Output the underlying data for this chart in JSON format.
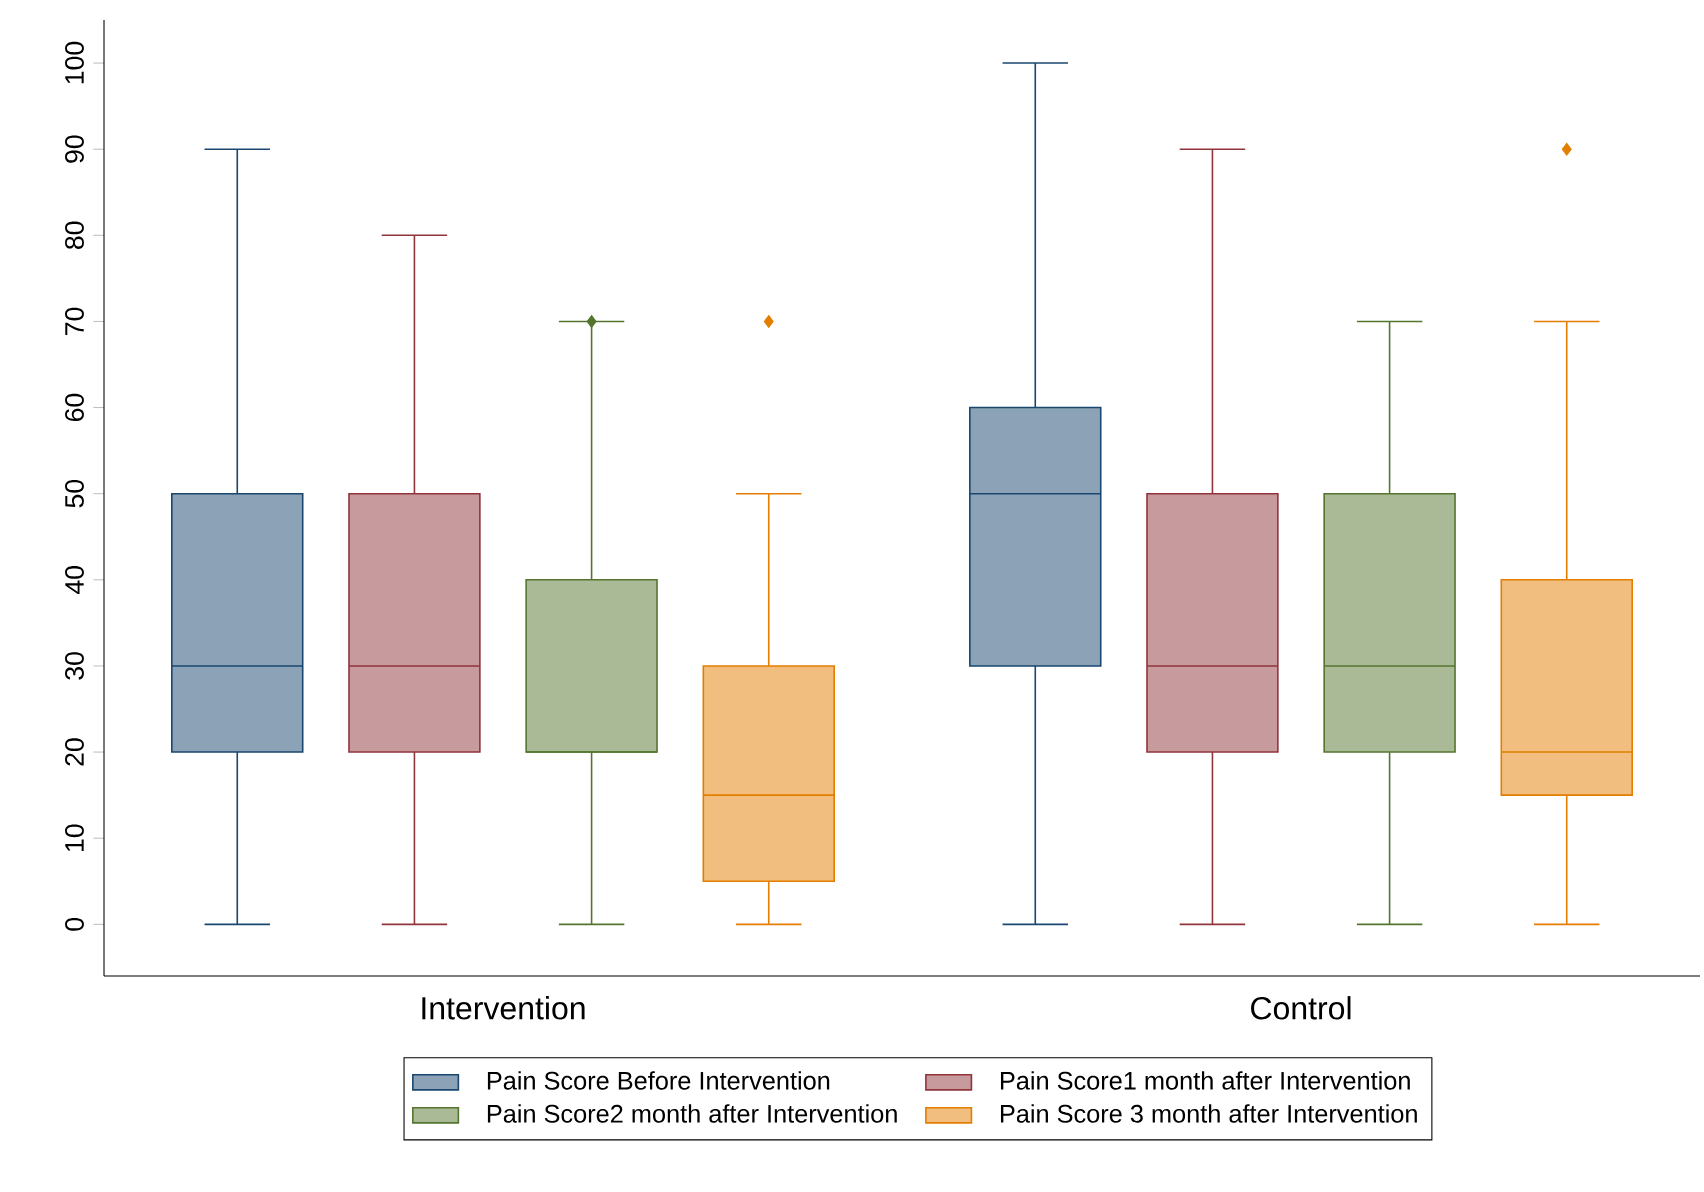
{
  "chart_data": {
    "type": "box",
    "categories": [
      "Intervention",
      "Control"
    ],
    "series": [
      {
        "name": "Pain Score Before Intervention",
        "color": "#1a476f",
        "boxes": [
          {
            "low": 0,
            "q1": 20,
            "median": 30,
            "q3": 50,
            "high": 90
          },
          {
            "low": 0,
            "q1": 30,
            "median": 50,
            "q3": 60,
            "high": 100
          }
        ]
      },
      {
        "name": "Pain Score1 month after Intervention",
        "color": "#90353b",
        "boxes": [
          {
            "low": 0,
            "q1": 20,
            "median": 30,
            "q3": 50,
            "high": 80
          },
          {
            "low": 0,
            "q1": 20,
            "median": 30,
            "q3": 50,
            "high": 90
          }
        ]
      },
      {
        "name": "Pain Score2 month after Intervention",
        "color": "#55752f",
        "boxes": [
          {
            "low": 0,
            "q1": 20,
            "median": 20,
            "q3": 40,
            "high": 70,
            "outliers": [
              70
            ]
          },
          {
            "low": 0,
            "q1": 20,
            "median": 30,
            "q3": 50,
            "high": 70
          }
        ]
      },
      {
        "name": "Pain Score 3 month after Intervention",
        "color": "#e37e00",
        "boxes": [
          {
            "low": 0,
            "q1": 5,
            "median": 15,
            "q3": 30,
            "high": 50,
            "outliers": [
              70
            ]
          },
          {
            "low": 0,
            "q1": 15,
            "median": 20,
            "q3": 40,
            "high": 70,
            "outliers": [
              90
            ]
          }
        ]
      }
    ],
    "ylim": [
      -6,
      105
    ],
    "yticks": [
      0,
      10,
      20,
      30,
      40,
      50,
      60,
      70,
      80,
      90,
      100
    ],
    "legend": "bottom"
  }
}
